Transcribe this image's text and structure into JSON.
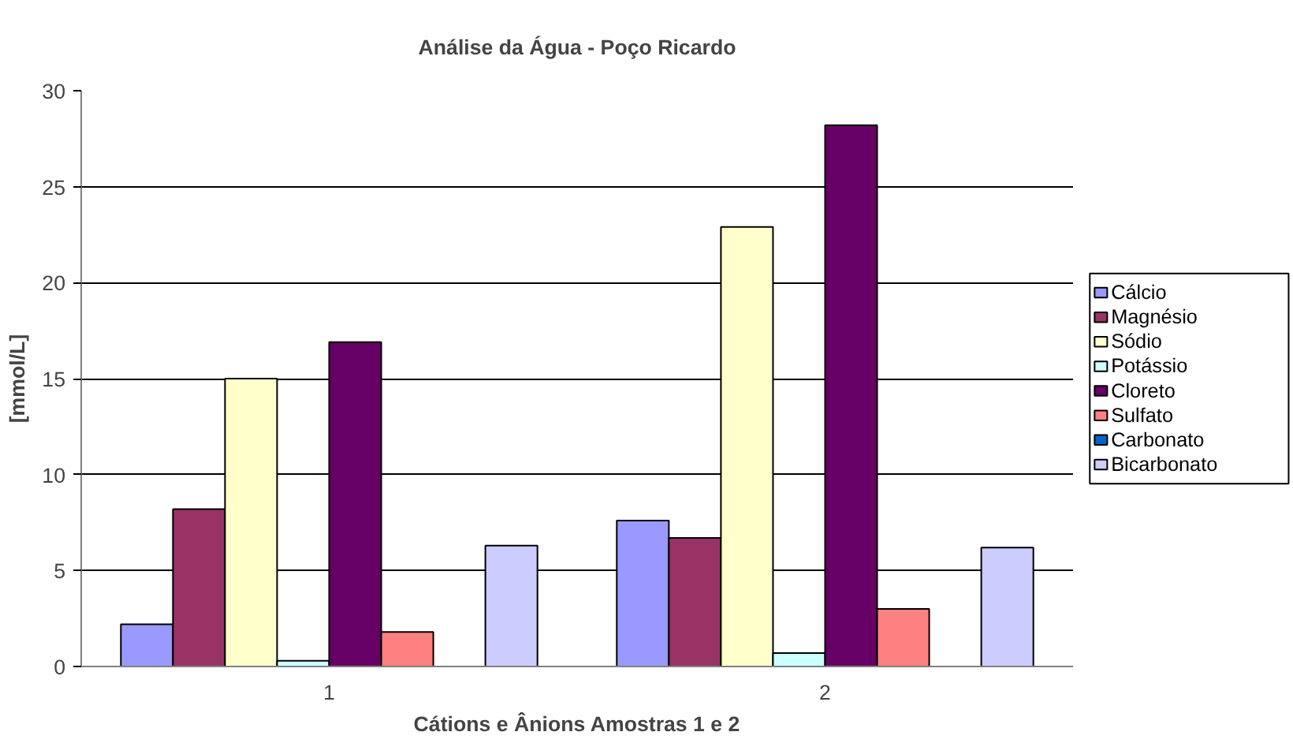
{
  "chart_data": {
    "type": "bar",
    "title": "Análise da Água - Poço Ricardo",
    "xlabel": "Cátions e Ânions Amostras 1 e 2",
    "ylabel": "[mmol/L]",
    "categories": [
      "1",
      "2"
    ],
    "series": [
      {
        "name": "Cálcio",
        "color": "#9999ff",
        "values": [
          2.2,
          7.6
        ]
      },
      {
        "name": "Magnésio",
        "color": "#993366",
        "values": [
          8.2,
          6.7
        ]
      },
      {
        "name": "Sódio",
        "color": "#ffffcc",
        "values": [
          15.0,
          22.9
        ]
      },
      {
        "name": "Potássio",
        "color": "#ccffff",
        "values": [
          0.3,
          0.7
        ]
      },
      {
        "name": "Cloreto",
        "color": "#660066",
        "values": [
          16.9,
          28.2
        ]
      },
      {
        "name": "Sulfato",
        "color": "#ff8080",
        "values": [
          1.8,
          3.0
        ]
      },
      {
        "name": "Carbonato",
        "color": "#0066cc",
        "values": [
          0,
          0
        ]
      },
      {
        "name": "Bicarbonato",
        "color": "#ccccff",
        "values": [
          6.3,
          6.2
        ]
      }
    ],
    "ylim": [
      0,
      30
    ],
    "yticks": [
      0,
      5,
      10,
      15,
      20,
      25,
      30
    ],
    "grid": "y",
    "legend": "right"
  }
}
